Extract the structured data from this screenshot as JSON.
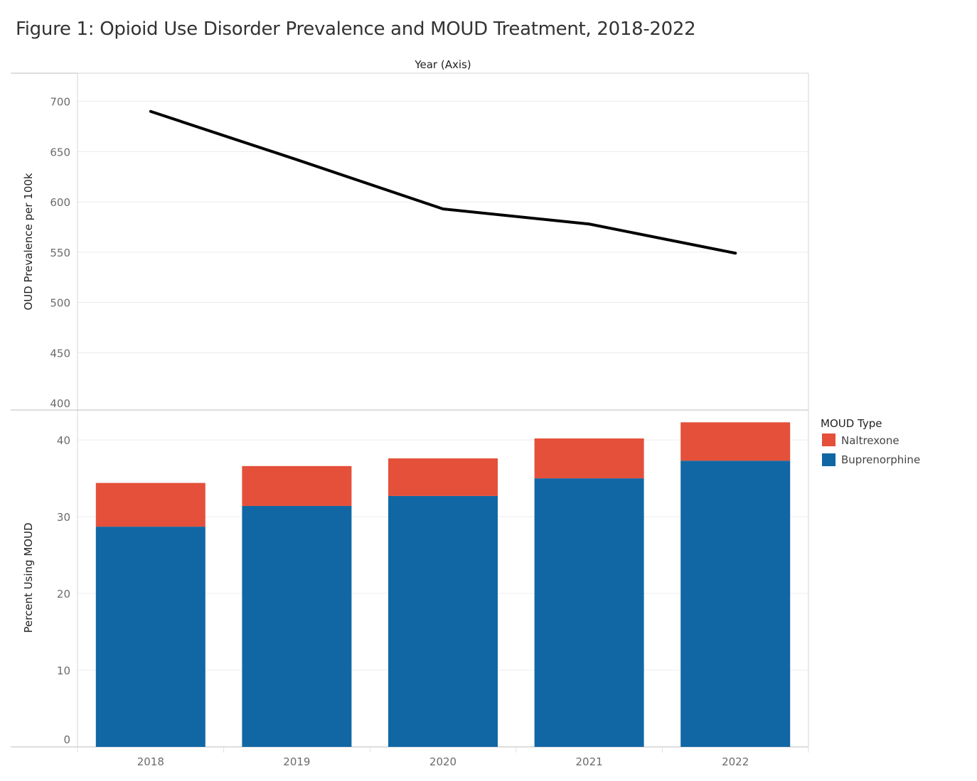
{
  "chart_data": {
    "title": "Figure 1: Opioid Use Disorder Prevalence and MOUD Treatment, 2018-2022",
    "x_header": "Year (Axis)",
    "categories": [
      "2018",
      "2019",
      "2020",
      "2021",
      "2022"
    ],
    "panels": [
      {
        "type": "line",
        "ylabel": "OUD Prevalence per 100k",
        "ylim": [
          393,
          728
        ],
        "yticks": [
          400,
          450,
          500,
          550,
          600,
          650,
          700
        ],
        "series": [
          {
            "values": [
              690,
              642,
              593,
              578,
              549
            ],
            "color": "#000000"
          }
        ],
        "grid": true
      },
      {
        "type": "bar",
        "stacked": true,
        "ylabel": "Percent Using MOUD",
        "ylim": [
          0,
          43.9
        ],
        "yticks": [
          0,
          10,
          20,
          30,
          40
        ],
        "series": [
          {
            "name": "Buprenorphine",
            "values": [
              28.7,
              31.4,
              32.7,
              35.0,
              37.3
            ],
            "color": "#1167a4"
          },
          {
            "name": "Naltrexone",
            "values": [
              5.7,
              5.2,
              4.9,
              5.2,
              5.0
            ],
            "color": "#e4503a"
          }
        ],
        "grid": true
      }
    ],
    "legend": {
      "title": "MOUD Type",
      "position": "right",
      "items": [
        {
          "label": "Naltrexone",
          "color": "#e4503a"
        },
        {
          "label": "Buprenorphine",
          "color": "#1167a4"
        }
      ]
    }
  }
}
